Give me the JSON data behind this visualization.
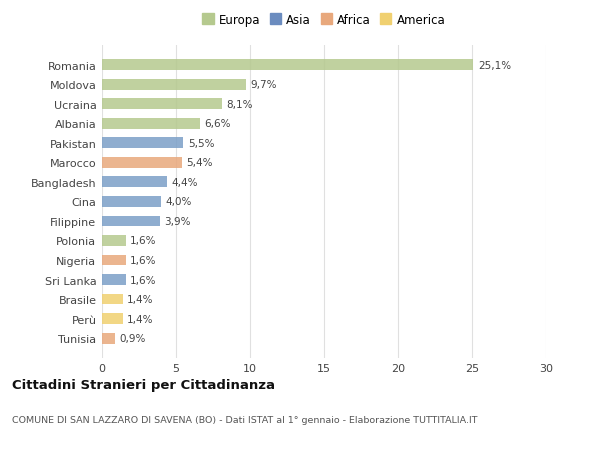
{
  "countries": [
    "Romania",
    "Moldova",
    "Ucraina",
    "Albania",
    "Pakistan",
    "Marocco",
    "Bangladesh",
    "Cina",
    "Filippine",
    "Polonia",
    "Nigeria",
    "Sri Lanka",
    "Brasile",
    "Perù",
    "Tunisia"
  ],
  "values": [
    25.1,
    9.7,
    8.1,
    6.6,
    5.5,
    5.4,
    4.4,
    4.0,
    3.9,
    1.6,
    1.6,
    1.6,
    1.4,
    1.4,
    0.9
  ],
  "continents": [
    "Europa",
    "Europa",
    "Europa",
    "Europa",
    "Asia",
    "Africa",
    "Asia",
    "Asia",
    "Asia",
    "Europa",
    "Africa",
    "Asia",
    "America",
    "America",
    "Africa"
  ],
  "continent_colors": {
    "Europa": "#b5c98e",
    "Asia": "#7b9fc7",
    "Africa": "#e8a87c",
    "America": "#f0d070"
  },
  "legend_order": [
    "Europa",
    "Asia",
    "Africa",
    "America"
  ],
  "legend_colors": {
    "Europa": "#b5c98e",
    "Asia": "#6b8cbf",
    "Africa": "#e8a87c",
    "America": "#f0d070"
  },
  "title": "Cittadini Stranieri per Cittadinanza",
  "subtitle": "COMUNE DI SAN LAZZARO DI SAVENA (BO) - Dati ISTAT al 1° gennaio - Elaborazione TUTTITALIA.IT",
  "xlim": [
    0,
    30
  ],
  "xticks": [
    0,
    5,
    10,
    15,
    20,
    25,
    30
  ],
  "background_color": "#ffffff",
  "grid_color": "#e0e0e0"
}
